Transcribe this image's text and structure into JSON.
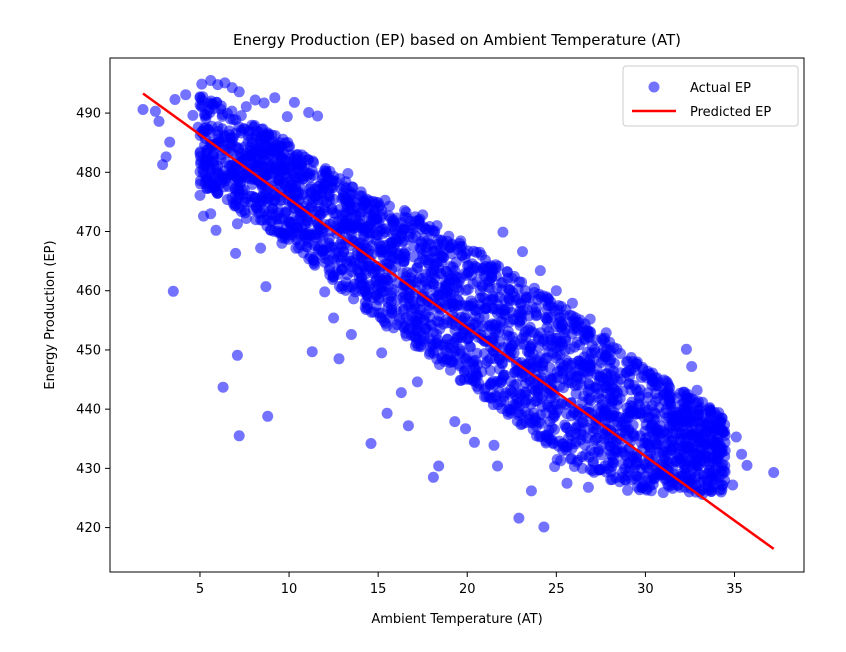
{
  "chart_data": {
    "type": "scatter",
    "title": "Energy Production (EP) based on Ambient Temperature (AT)",
    "xlabel": "Ambient Temperature (AT)",
    "ylabel": "Energy Production (EP)",
    "xlim": [
      -0.05,
      38.9
    ],
    "ylim": [
      412.5,
      499.3
    ],
    "xticks": [
      5,
      10,
      15,
      20,
      25,
      30,
      35
    ],
    "yticks": [
      420,
      430,
      440,
      450,
      460,
      470,
      480,
      490
    ],
    "grid": false,
    "legend_position": "top-right",
    "series": [
      {
        "name": "Actual EP",
        "kind": "scatter",
        "color": "#0000ff",
        "points": [
          [
            1.8,
            490.6
          ],
          [
            2.7,
            488.6
          ],
          [
            2.9,
            481.3
          ],
          [
            3.1,
            482.6
          ],
          [
            3.3,
            485.1
          ],
          [
            3.5,
            459.9
          ],
          [
            2.5,
            490.3
          ],
          [
            3.6,
            492.3
          ],
          [
            4.2,
            493.1
          ],
          [
            4.6,
            489.6
          ],
          [
            4.9,
            487.6
          ],
          [
            5.1,
            494.9
          ],
          [
            5.6,
            495.5
          ],
          [
            6.0,
            494.8
          ],
          [
            6.4,
            495.1
          ],
          [
            6.8,
            494.3
          ],
          [
            7.2,
            493.6
          ],
          [
            7.6,
            491.1
          ],
          [
            8.1,
            492.2
          ],
          [
            8.6,
            491.7
          ],
          [
            9.2,
            492.6
          ],
          [
            9.9,
            489.4
          ],
          [
            10.3,
            491.8
          ],
          [
            11.1,
            490.1
          ],
          [
            11.6,
            489.5
          ],
          [
            5.0,
            483.2
          ],
          [
            5.3,
            479.8
          ],
          [
            5.0,
            476.1
          ],
          [
            5.2,
            472.6
          ],
          [
            5.6,
            473.0
          ],
          [
            5.9,
            470.2
          ],
          [
            6.6,
            477.6
          ],
          [
            7.0,
            466.3
          ],
          [
            7.6,
            472.2
          ],
          [
            8.4,
            467.2
          ],
          [
            8.7,
            460.7
          ],
          [
            7.1,
            471.3
          ],
          [
            6.3,
            443.7
          ],
          [
            7.1,
            449.1
          ],
          [
            7.2,
            435.5
          ],
          [
            8.8,
            438.8
          ],
          [
            11.3,
            449.7
          ],
          [
            12.8,
            448.5
          ],
          [
            14.6,
            434.2
          ],
          [
            15.5,
            439.3
          ],
          [
            16.3,
            442.8
          ],
          [
            16.7,
            437.2
          ],
          [
            18.1,
            428.5
          ],
          [
            18.4,
            430.4
          ],
          [
            22.9,
            421.6
          ],
          [
            24.3,
            420.1
          ],
          [
            23.6,
            426.2
          ],
          [
            21.5,
            433.9
          ],
          [
            19.9,
            436.7
          ],
          [
            22.0,
            469.9
          ],
          [
            23.1,
            466.6
          ],
          [
            24.1,
            463.4
          ],
          [
            25.0,
            460.0
          ],
          [
            25.9,
            457.9
          ],
          [
            26.9,
            455.2
          ],
          [
            27.8,
            452.9
          ],
          [
            28.6,
            449.4
          ],
          [
            29.5,
            447.6
          ],
          [
            30.4,
            446.1
          ],
          [
            31.3,
            444.0
          ],
          [
            32.3,
            450.1
          ],
          [
            32.6,
            447.2
          ],
          [
            32.9,
            443.2
          ],
          [
            33.6,
            440.1
          ],
          [
            34.3,
            438.5
          ],
          [
            35.1,
            435.3
          ],
          [
            35.4,
            432.4
          ],
          [
            35.7,
            430.5
          ],
          [
            34.9,
            427.2
          ],
          [
            33.7,
            426.1
          ],
          [
            37.2,
            429.3
          ],
          [
            33.2,
            425.6
          ],
          [
            31.0,
            425.9
          ],
          [
            29.0,
            426.3
          ],
          [
            26.8,
            426.8
          ],
          [
            25.6,
            427.5
          ],
          [
            24.9,
            430.3
          ],
          [
            21.7,
            430.4
          ],
          [
            20.4,
            434.4
          ],
          [
            19.3,
            437.9
          ],
          [
            17.2,
            444.6
          ],
          [
            15.2,
            449.5
          ],
          [
            13.5,
            452.6
          ],
          [
            12.5,
            455.4
          ],
          [
            12.0,
            459.8
          ],
          [
            9.6,
            468.0
          ],
          [
            13.3,
            479.8
          ],
          [
            14.2,
            475.0
          ],
          [
            16.5,
            472.4
          ],
          [
            17.5,
            472.8
          ],
          [
            18.3,
            471.0
          ],
          [
            19.6,
            467.5
          ],
          [
            20.8,
            466.0
          ],
          [
            28.4,
            450.2
          ],
          [
            28.2,
            430.9
          ]
        ],
        "bands": [
          {
            "x": [
              5.0,
              10.0
            ],
            "y_low": [
              478,
              468
            ],
            "y_high": [
              494,
              485
            ]
          },
          {
            "x": [
              10.0,
              15.0
            ],
            "y_low": [
              468,
              455
            ],
            "y_high": [
              485,
              475
            ]
          },
          {
            "x": [
              15.0,
              20.0
            ],
            "y_low": [
              455,
              444
            ],
            "y_high": [
              476,
              468
            ]
          },
          {
            "x": [
              20.0,
              25.0
            ],
            "y_low": [
              444,
              433
            ],
            "y_high": [
              468,
              458
            ]
          },
          {
            "x": [
              25.0,
              30.0
            ],
            "y_low": [
              431,
              426
            ],
            "y_high": [
              458,
              447
            ]
          },
          {
            "x": [
              30.0,
              34.5
            ],
            "y_low": [
              426,
              426
            ],
            "y_high": [
              447,
              439
            ]
          }
        ]
      },
      {
        "name": "Predicted EP",
        "kind": "line",
        "color": "#ff0000",
        "x": [
          1.8,
          37.2
        ],
        "y": [
          493.3,
          416.4
        ]
      }
    ]
  }
}
